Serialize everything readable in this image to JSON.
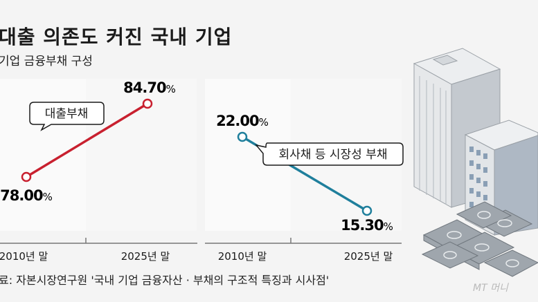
{
  "header": {
    "title": "대출 의존도 커진 국내 기업",
    "subtitle": "기업 금융부채 구성"
  },
  "footer": {
    "source": "료: 자본시장연구원 '국내 기업 금융자산 · 부채의 구조적 특징과 시사점'",
    "watermark": "MT 머니"
  },
  "colors": {
    "loan": "#c8202f",
    "bond": "#1f7f9c",
    "axis": "#777777"
  },
  "icons": [
    "office-buildings-illustration",
    "won-banknote-stack-illustration"
  ],
  "chart_data": [
    {
      "type": "line",
      "series": [
        {
          "name": "대출부채",
          "values": [
            78.0,
            84.7
          ]
        }
      ],
      "categories": [
        "2010년 말",
        "2025년 말"
      ],
      "data_labels": [
        "78.00",
        "84.70"
      ],
      "unit": "%",
      "ylim": [
        76,
        86
      ]
    },
    {
      "type": "line",
      "series": [
        {
          "name": "회사채 등 시장성 부채",
          "values": [
            22.0,
            15.3
          ]
        }
      ],
      "categories": [
        "2010년 말",
        "2025년 말"
      ],
      "data_labels": [
        "22.00",
        "15.30"
      ],
      "unit": "%",
      "ylim": [
        14,
        23
      ]
    }
  ]
}
